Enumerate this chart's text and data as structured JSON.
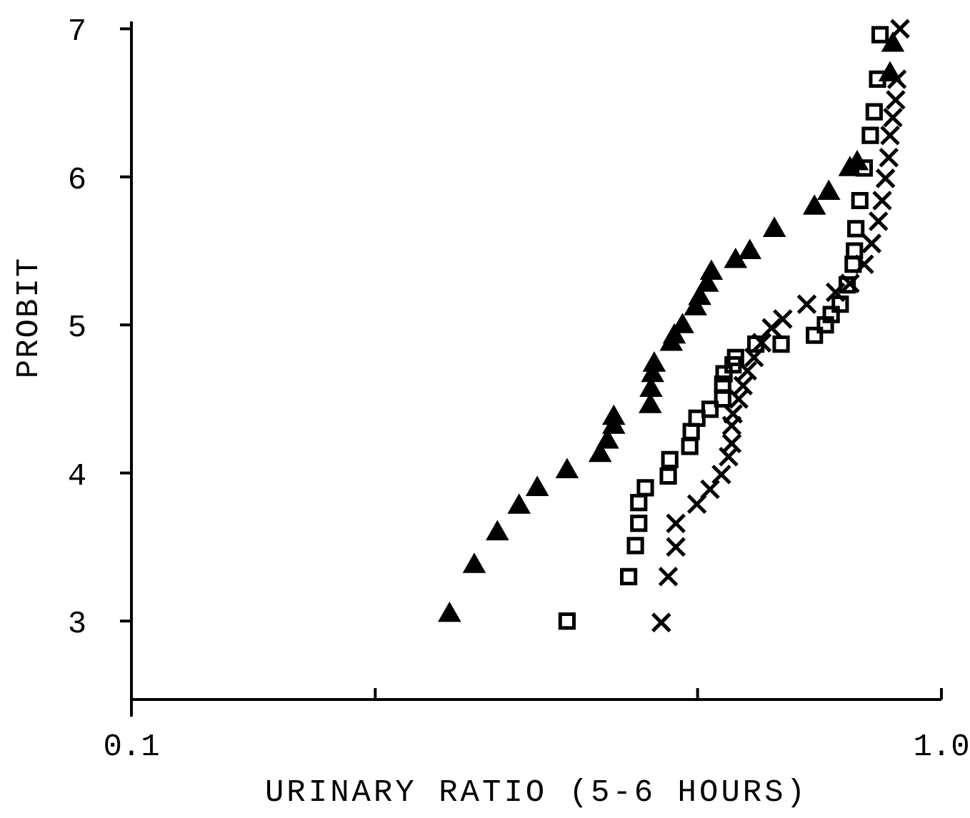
{
  "chart_data": {
    "type": "scatter",
    "xlabel": "URINARY RATIO (5-6 HOURS)",
    "ylabel": "PROBIT",
    "log": "x",
    "xlim": [
      0.1,
      1.0
    ],
    "xticks": [
      {
        "value": 0.1,
        "label": "0.1"
      },
      {
        "value": 0.2,
        "label": null
      },
      {
        "value": 0.5,
        "label": null
      },
      {
        "value": 1.0,
        "label": "1.0"
      }
    ],
    "ylim": [
      2.47,
      7.05
    ],
    "yticks": [
      3,
      4,
      5,
      6,
      7
    ],
    "grid": false,
    "series": [
      {
        "color": "#000000",
        "marker": "triangle",
        "x": [
          0.247,
          0.265,
          0.283,
          0.301,
          0.317,
          0.345,
          0.379,
          0.387,
          0.394,
          0.394,
          0.437,
          0.438,
          0.44,
          0.442,
          0.464,
          0.468,
          0.479,
          0.497,
          0.503,
          0.514,
          0.52,
          0.557,
          0.58,
          0.622,
          0.697,
          0.726,
          0.771,
          0.787,
          0.864,
          0.871
        ],
        "values": [
          3.05,
          3.38,
          3.6,
          3.78,
          3.9,
          4.02,
          4.13,
          4.22,
          4.32,
          4.38,
          4.46,
          4.57,
          4.67,
          4.74,
          4.88,
          4.93,
          5.0,
          5.12,
          5.19,
          5.28,
          5.36,
          5.44,
          5.5,
          5.65,
          5.8,
          5.9,
          6.06,
          6.1,
          6.7,
          6.9
        ]
      },
      {
        "color": "#000000",
        "marker": "square",
        "x": [
          0.345,
          0.411,
          0.419,
          0.423,
          0.423,
          0.431,
          0.46,
          0.462,
          0.489,
          0.491,
          0.499,
          0.518,
          0.537,
          0.537,
          0.539,
          0.553,
          0.557,
          0.59,
          0.634,
          0.697,
          0.719,
          0.731,
          0.75,
          0.765,
          0.778,
          0.781,
          0.784,
          0.793,
          0.803,
          0.817,
          0.826,
          0.834,
          0.84
        ],
        "values": [
          3.0,
          3.3,
          3.51,
          3.66,
          3.8,
          3.9,
          3.98,
          4.09,
          4.18,
          4.28,
          4.37,
          4.43,
          4.5,
          4.6,
          4.67,
          4.73,
          4.78,
          4.87,
          4.87,
          4.93,
          5.0,
          5.07,
          5.14,
          5.27,
          5.41,
          5.5,
          5.65,
          5.84,
          6.06,
          6.28,
          6.44,
          6.66,
          6.96
        ]
      },
      {
        "color": "#000000",
        "marker": "cross",
        "x": [
          0.451,
          0.46,
          0.47,
          0.47,
          0.499,
          0.518,
          0.535,
          0.546,
          0.551,
          0.551,
          0.553,
          0.562,
          0.569,
          0.576,
          0.587,
          0.6,
          0.617,
          0.637,
          0.682,
          0.74,
          0.771,
          0.803,
          0.82,
          0.836,
          0.845,
          0.853,
          0.861,
          0.864,
          0.871,
          0.878,
          0.881,
          0.889
        ],
        "values": [
          2.99,
          3.3,
          3.5,
          3.66,
          3.79,
          3.89,
          3.99,
          4.11,
          4.2,
          4.32,
          4.4,
          4.5,
          4.59,
          4.69,
          4.78,
          4.88,
          4.98,
          5.04,
          5.14,
          5.22,
          5.28,
          5.41,
          5.55,
          5.7,
          5.84,
          5.99,
          6.13,
          6.28,
          6.4,
          6.52,
          6.66,
          7.0
        ]
      }
    ]
  }
}
